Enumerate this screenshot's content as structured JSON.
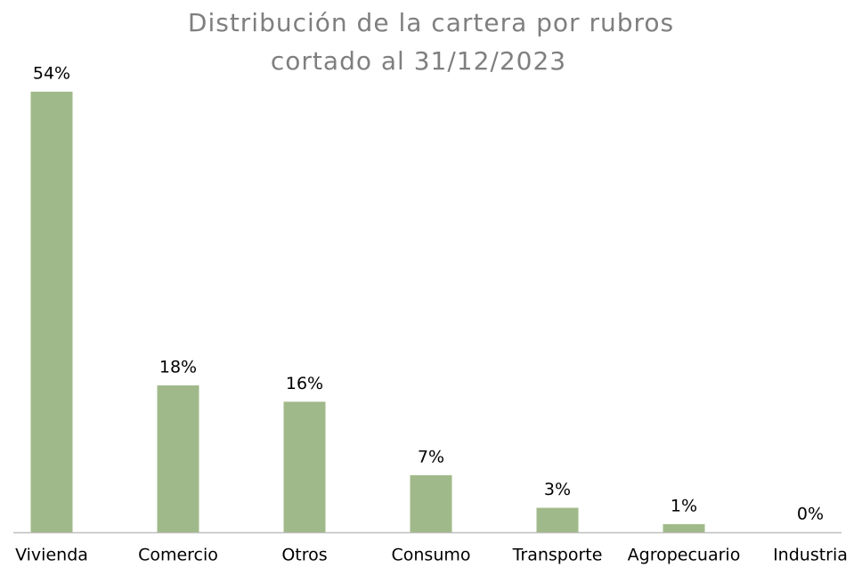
{
  "chart_data": {
    "type": "bar",
    "title": "Distribución de la cartera por rubros",
    "subtitle": "cortado al 31/12/2023",
    "categories": [
      "Vivienda",
      "Comercio",
      "Otros",
      "Consumo",
      "Transporte",
      "Agropecuario",
      "Industria"
    ],
    "values": [
      54,
      18,
      16,
      7,
      3,
      1,
      0
    ],
    "value_labels": [
      "54%",
      "18%",
      "16%",
      "7%",
      "3%",
      "1%",
      "0%"
    ],
    "color": "#a0b98a"
  }
}
